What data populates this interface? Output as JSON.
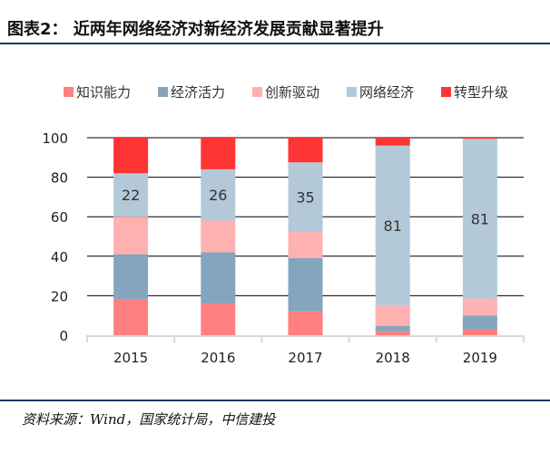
{
  "title": "图表2： 近两年网络经济对新经济发展贡献显著提升",
  "source": "资料来源：Wind，国家统计局，中信建投",
  "chart_data": {
    "type": "bar",
    "stacked": true,
    "categories": [
      "2015",
      "2016",
      "2017",
      "2018",
      "2019"
    ],
    "ylim": [
      0,
      100
    ],
    "yticks": [
      0,
      20,
      40,
      60,
      80,
      100
    ],
    "grid": true,
    "legend_position": "top",
    "series": [
      {
        "name": "知识能力",
        "color": "#ff7f7f",
        "values": [
          18,
          16,
          12,
          2,
          3
        ]
      },
      {
        "name": "经济活力",
        "color": "#84a5bd",
        "values": [
          23,
          26,
          27,
          2.6,
          7
        ]
      },
      {
        "name": "创新驱动",
        "color": "#ffb0b0",
        "values": [
          19,
          16,
          13.5,
          10.4,
          8.5
        ]
      },
      {
        "name": "网络经济",
        "color": "#b4c9d8",
        "values": [
          22,
          26,
          35,
          81,
          81
        ],
        "labels": [
          "22",
          "26",
          "35",
          "81",
          "81"
        ]
      },
      {
        "name": "转型升级",
        "color": "#ff3434",
        "values": [
          18,
          16,
          12.5,
          4,
          0.5
        ]
      }
    ]
  }
}
